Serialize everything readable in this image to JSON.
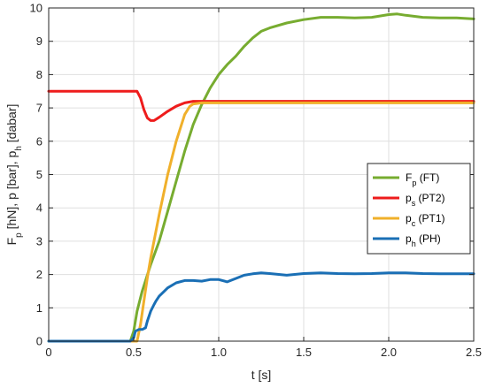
{
  "chart_data": {
    "type": "line",
    "xlabel": "t [s]",
    "ylabel": "F",
    "ylabel_parts": [
      {
        "t": "F",
        "sub": false
      },
      {
        "t": "p",
        "sub": true
      },
      {
        "t": " [hN], p [bar], p",
        "sub": false
      },
      {
        "t": "h",
        "sub": true
      },
      {
        "t": " [dabar]",
        "sub": false
      }
    ],
    "xlim": [
      0,
      2.5
    ],
    "ylim": [
      0,
      10
    ],
    "xticks": [
      0,
      0.5,
      1,
      1.5,
      2,
      2.5
    ],
    "xtick_labels": [
      "0",
      "0.5",
      "1.0",
      "1.5",
      "2.0",
      "2.5"
    ],
    "yticks": [
      0,
      1,
      2,
      3,
      4,
      5,
      6,
      7,
      8,
      9,
      10
    ],
    "ytick_labels": [
      "0",
      "1",
      "2",
      "3",
      "4",
      "5",
      "6",
      "7",
      "8",
      "9",
      "10"
    ],
    "grid": true,
    "legend_position": "right",
    "series": [
      {
        "name": "Fp (FT)",
        "label_parts": [
          {
            "t": "F",
            "sub": false
          },
          {
            "t": "p",
            "sub": true
          },
          {
            "t": " (FT)",
            "sub": false
          }
        ],
        "color": "#77ac30",
        "x": [
          0,
          0.48,
          0.5,
          0.52,
          0.55,
          0.6,
          0.65,
          0.7,
          0.75,
          0.8,
          0.85,
          0.9,
          0.95,
          1.0,
          1.05,
          1.1,
          1.15,
          1.2,
          1.25,
          1.3,
          1.4,
          1.5,
          1.6,
          1.7,
          1.8,
          1.9,
          2.0,
          2.05,
          2.1,
          2.2,
          2.3,
          2.4,
          2.5
        ],
        "y": [
          0,
          0,
          0.3,
          0.9,
          1.5,
          2.3,
          3.0,
          3.9,
          4.8,
          5.7,
          6.5,
          7.1,
          7.6,
          8.0,
          8.3,
          8.55,
          8.85,
          9.1,
          9.3,
          9.4,
          9.55,
          9.65,
          9.72,
          9.72,
          9.7,
          9.72,
          9.8,
          9.82,
          9.78,
          9.72,
          9.7,
          9.7,
          9.67
        ]
      },
      {
        "name": "ps (PT2)",
        "label_parts": [
          {
            "t": "p",
            "sub": false
          },
          {
            "t": "s",
            "sub": true
          },
          {
            "t": " (PT2)",
            "sub": false
          }
        ],
        "color": "#ee1c1c",
        "x": [
          0,
          0.5,
          0.52,
          0.54,
          0.56,
          0.58,
          0.6,
          0.62,
          0.65,
          0.7,
          0.75,
          0.8,
          0.85,
          0.9,
          1.0,
          1.5,
          2.0,
          2.5
        ],
        "y": [
          7.5,
          7.5,
          7.5,
          7.3,
          6.95,
          6.7,
          6.62,
          6.62,
          6.72,
          6.9,
          7.05,
          7.15,
          7.2,
          7.2,
          7.2,
          7.2,
          7.2,
          7.2
        ]
      },
      {
        "name": "pc (PT1)",
        "label_parts": [
          {
            "t": "p",
            "sub": false
          },
          {
            "t": "c",
            "sub": true
          },
          {
            "t": " (PT1)",
            "sub": false
          }
        ],
        "color": "#f0b02b",
        "x": [
          0,
          0.52,
          0.54,
          0.56,
          0.58,
          0.6,
          0.65,
          0.7,
          0.75,
          0.8,
          0.83,
          0.85,
          0.9,
          1.0,
          1.5,
          2.0,
          2.5
        ],
        "y": [
          0,
          0,
          0.5,
          1.2,
          1.9,
          2.5,
          3.8,
          5.0,
          6.0,
          6.8,
          7.05,
          7.12,
          7.15,
          7.15,
          7.15,
          7.15,
          7.15
        ]
      },
      {
        "name": "ph (PH)",
        "label_parts": [
          {
            "t": "p",
            "sub": false
          },
          {
            "t": "h",
            "sub": true
          },
          {
            "t": " (PH)",
            "sub": false
          }
        ],
        "color": "#1a6fb5",
        "x": [
          0,
          0.48,
          0.5,
          0.51,
          0.53,
          0.55,
          0.57,
          0.58,
          0.6,
          0.62,
          0.63,
          0.65,
          0.68,
          0.7,
          0.75,
          0.8,
          0.85,
          0.9,
          0.95,
          1.0,
          1.05,
          1.1,
          1.15,
          1.2,
          1.25,
          1.3,
          1.4,
          1.5,
          1.6,
          1.7,
          1.8,
          1.9,
          2.0,
          2.1,
          2.2,
          2.3,
          2.4,
          2.5
        ],
        "y": [
          0,
          0,
          0.1,
          0.3,
          0.35,
          0.35,
          0.4,
          0.6,
          0.9,
          1.1,
          1.2,
          1.35,
          1.5,
          1.6,
          1.75,
          1.82,
          1.82,
          1.8,
          1.85,
          1.85,
          1.78,
          1.88,
          1.98,
          2.02,
          2.05,
          2.03,
          1.98,
          2.03,
          2.05,
          2.03,
          2.02,
          2.03,
          2.05,
          2.05,
          2.03,
          2.02,
          2.02,
          2.02
        ]
      }
    ]
  }
}
